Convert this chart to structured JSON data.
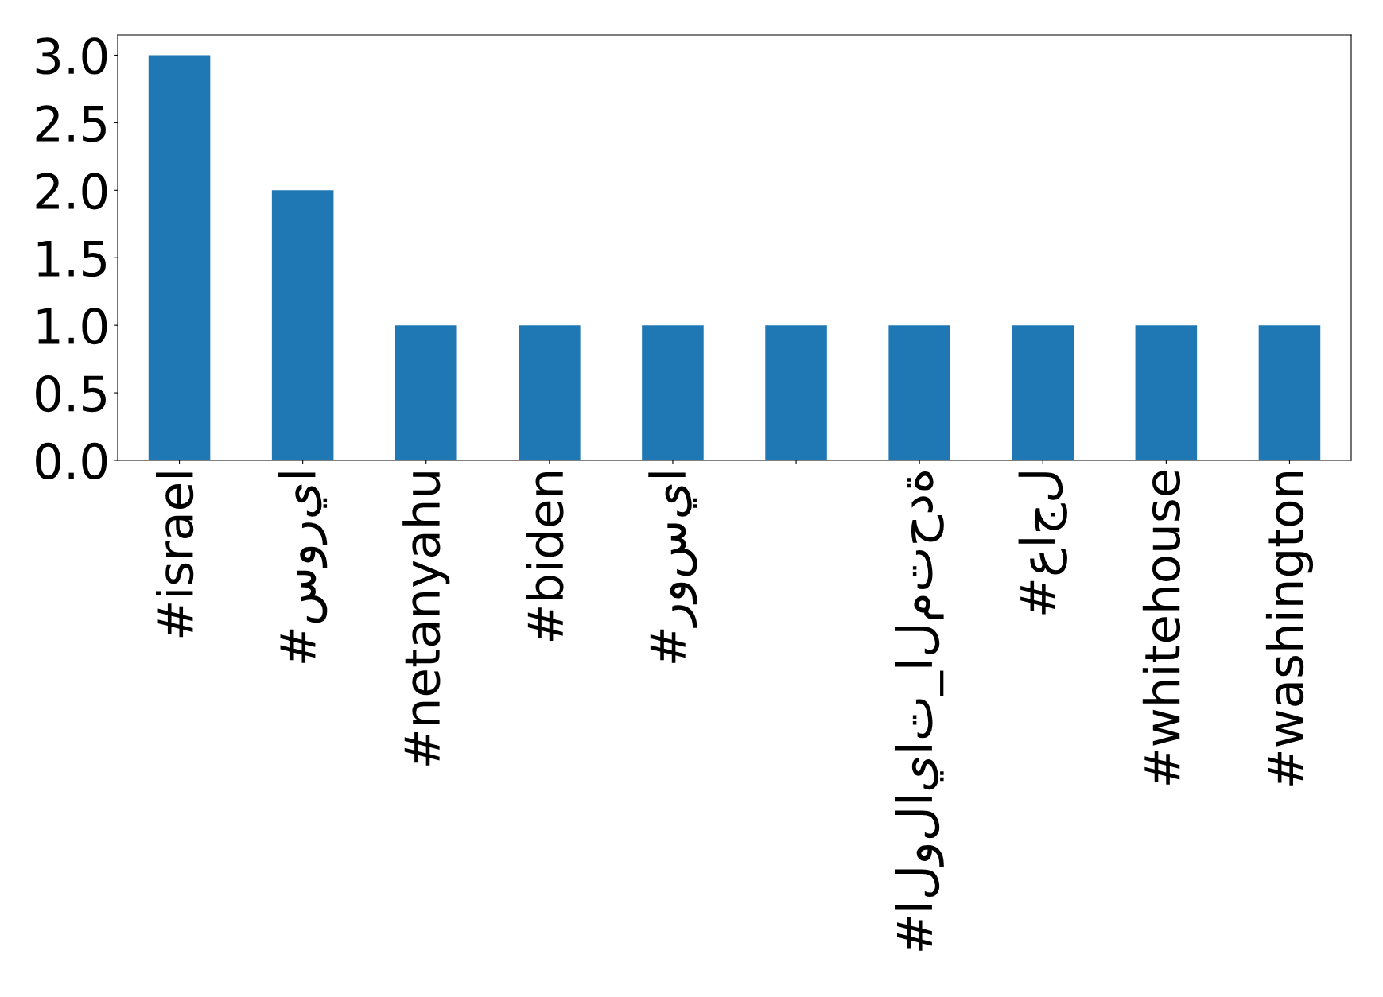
{
  "chart_data": {
    "type": "bar",
    "categories": [
      "#israel",
      "#سوريا",
      "#netanyahu",
      "#biden",
      "#روسيا",
      null,
      "#الولايات_المتحدة",
      "#عاجل",
      "#whitehouse",
      "#washington"
    ],
    "values": [
      3,
      2,
      1,
      1,
      1,
      1,
      1,
      1,
      1,
      1
    ],
    "color": "#1f77b4",
    "ylim": [
      0,
      3.15
    ],
    "yticks": [
      {
        "value": 0,
        "label": "0.0"
      },
      {
        "value": 0.5,
        "label": "0.5"
      },
      {
        "value": 1,
        "label": "1.0"
      },
      {
        "value": 1.5,
        "label": "1.5"
      },
      {
        "value": 2,
        "label": "2.0"
      },
      {
        "value": 2.5,
        "label": "2.5"
      },
      {
        "value": 3,
        "label": "3.0"
      }
    ],
    "grid": false,
    "legend": false
  }
}
